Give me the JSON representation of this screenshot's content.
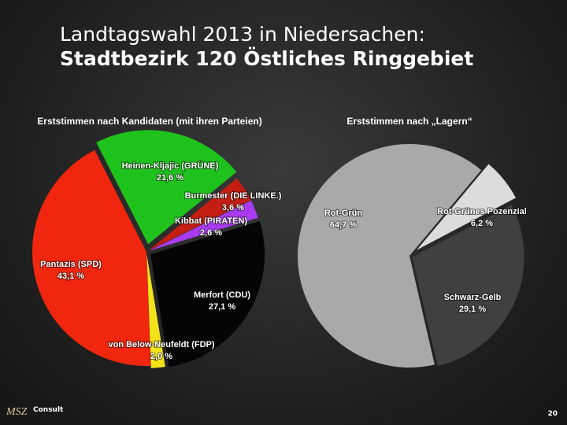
{
  "slide": {
    "title_line1": "Landtagswahl 2013 in Niedersachen:",
    "title_line2": "Stadtbezirk 120 Östliches Ringgebiet",
    "logo_main": "MSZ",
    "logo_sub": "Consult",
    "page_number": "20"
  },
  "chart_data": [
    {
      "type": "pie",
      "title": "Erststimmen nach Kandidaten (mit ihren Parteien)",
      "categories": [
        "Heinen-Kljajic (GRÜNE)",
        "Burmester (DIE LINKE.)",
        "Kibbat (PIRATEN)",
        "Merfort (CDU)",
        "von Below-Neufeldt (FDP)",
        "Pantazis (SPD)"
      ],
      "values": [
        21.6,
        3.6,
        2.6,
        27.1,
        2.0,
        43.1
      ],
      "value_labels": [
        "21,6 %",
        "3,6 %",
        "2,6 %",
        "27,1 %",
        "2,0 %",
        "43,1 %"
      ],
      "colors": [
        "#1fc21c",
        "#c41d12",
        "#a93cf2",
        "#050505",
        "#f2e21a",
        "#f0260e"
      ]
    },
    {
      "type": "pie",
      "title": "Erststimmen nach „Lagern“",
      "categories": [
        "Rot-Grün",
        "Rot-Grünes Pozenzial",
        "Schwarz-Gelb"
      ],
      "values": [
        64.7,
        6.2,
        29.1
      ],
      "value_labels": [
        "64,7 %",
        "6,2 %",
        "29,1 %"
      ],
      "colors": [
        "#a9a9a9",
        "#dcdcdc",
        "#404040"
      ]
    }
  ]
}
